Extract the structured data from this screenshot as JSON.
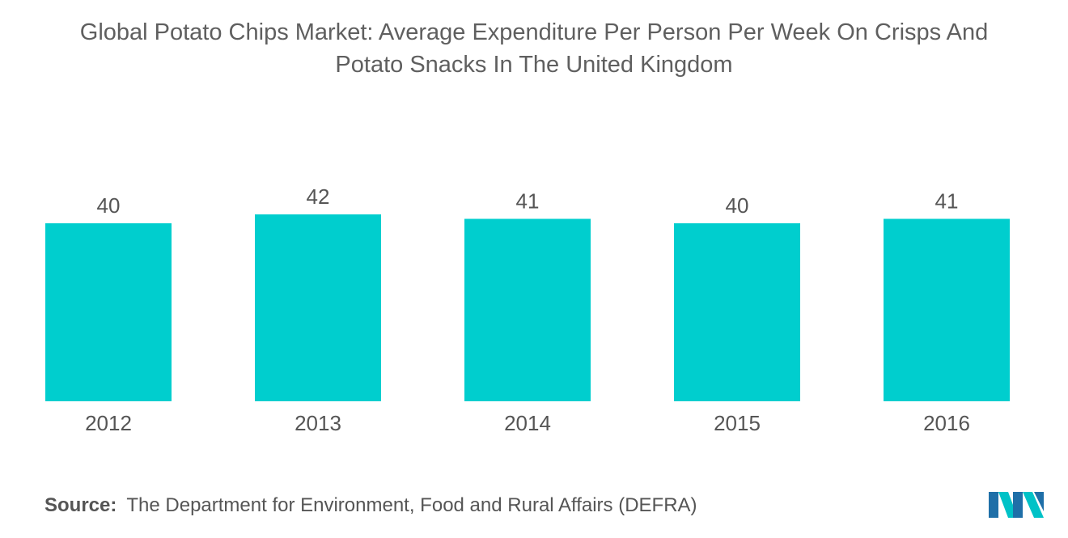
{
  "chart_data": {
    "type": "bar",
    "title": "Global Potato Chips Market: Average Expenditure Per Person Per Week On Crisps And Potato Snacks In The United Kingdom",
    "title_lines": [
      "Global Potato Chips Market: Average Expenditure Per Person Per Week On Crisps And",
      "Potato Snacks In The United Kingdom"
    ],
    "categories": [
      "2012",
      "2013",
      "2014",
      "2015",
      "2016"
    ],
    "values": [
      40,
      42,
      41,
      40,
      41
    ],
    "xlabel": "",
    "ylabel": "",
    "ylim": [
      0,
      42
    ],
    "grid": false,
    "legend": "none",
    "bar_color": "#00cece",
    "data_labels": true
  },
  "source": {
    "label": "Source:",
    "text": "The Department for Environment, Food and Rural Affairs (DEFRA)"
  },
  "brand": {
    "logo_icon": "mordor-intelligence-logo-icon",
    "colors": [
      "#1f6fa8",
      "#00c2c7"
    ]
  }
}
